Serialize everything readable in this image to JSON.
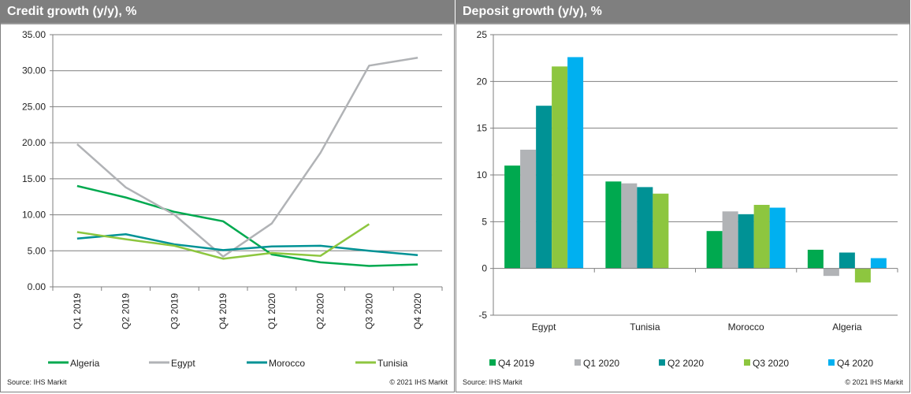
{
  "left_panel": {
    "title": "Credit growth (y/y), %",
    "source": "Source:  IHS Markit",
    "copyright": "© 2021  IHS Markit"
  },
  "right_panel": {
    "title": "Deposit growth (y/y), %",
    "source": "Source:  IHS Markit",
    "copyright": "© 2021  IHS Markit"
  },
  "chart_data": [
    {
      "type": "line",
      "title": "Credit growth (y/y), %",
      "xlabel": "",
      "ylabel": "",
      "categories": [
        "Q1 2019",
        "Q2 2019",
        "Q3 2019",
        "Q4 2019",
        "Q1 2020",
        "Q2 2020",
        "Q3 2020",
        "Q4 2020"
      ],
      "ylim": [
        0,
        35
      ],
      "yticks": [
        "0.00",
        "5.00",
        "10.00",
        "15.00",
        "20.00",
        "25.00",
        "30.00",
        "35.00"
      ],
      "ytick_values": [
        0,
        5,
        10,
        15,
        20,
        25,
        30,
        35
      ],
      "grid": true,
      "legend": "bottom",
      "series": [
        {
          "name": "Algeria",
          "color": "#00a94f",
          "values": [
            14.0,
            12.4,
            10.4,
            9.1,
            4.5,
            3.4,
            2.9,
            3.1
          ]
        },
        {
          "name": "Egypt",
          "color": "#b1b3b6",
          "values": [
            19.8,
            13.8,
            10.0,
            4.2,
            8.8,
            18.6,
            30.7,
            31.8
          ]
        },
        {
          "name": "Morocco",
          "color": "#009295",
          "values": [
            6.7,
            7.3,
            5.9,
            5.1,
            5.6,
            5.7,
            5.0,
            4.4
          ]
        },
        {
          "name": "Tunisia",
          "color": "#8dc63f",
          "values": [
            7.6,
            6.6,
            5.7,
            3.9,
            4.7,
            4.3,
            8.7,
            null
          ]
        }
      ]
    },
    {
      "type": "bar",
      "title": "Deposit growth (y/y), %",
      "xlabel": "",
      "ylabel": "",
      "categories": [
        "Egypt",
        "Tunisia",
        "Morocco",
        "Algeria"
      ],
      "ylim": [
        -5,
        25
      ],
      "yticks": [
        "-5",
        "0",
        "5",
        "10",
        "15",
        "20",
        "25"
      ],
      "ytick_values": [
        -5,
        0,
        5,
        10,
        15,
        20,
        25
      ],
      "grid": true,
      "legend": "bottom",
      "series": [
        {
          "name": "Q4 2019",
          "color": "#00a94f",
          "values": [
            11.0,
            9.3,
            4.0,
            2.0
          ]
        },
        {
          "name": "Q1 2020",
          "color": "#b1b3b6",
          "values": [
            12.7,
            9.1,
            6.1,
            -0.8
          ]
        },
        {
          "name": "Q2 2020",
          "color": "#009295",
          "values": [
            17.4,
            8.7,
            5.8,
            1.7
          ]
        },
        {
          "name": "Q3 2020",
          "color": "#8dc63f",
          "values": [
            21.6,
            8.0,
            6.8,
            -1.5
          ]
        },
        {
          "name": "Q4 2020",
          "color": "#00b0f0",
          "values": [
            22.6,
            null,
            6.5,
            1.1
          ]
        }
      ]
    }
  ]
}
